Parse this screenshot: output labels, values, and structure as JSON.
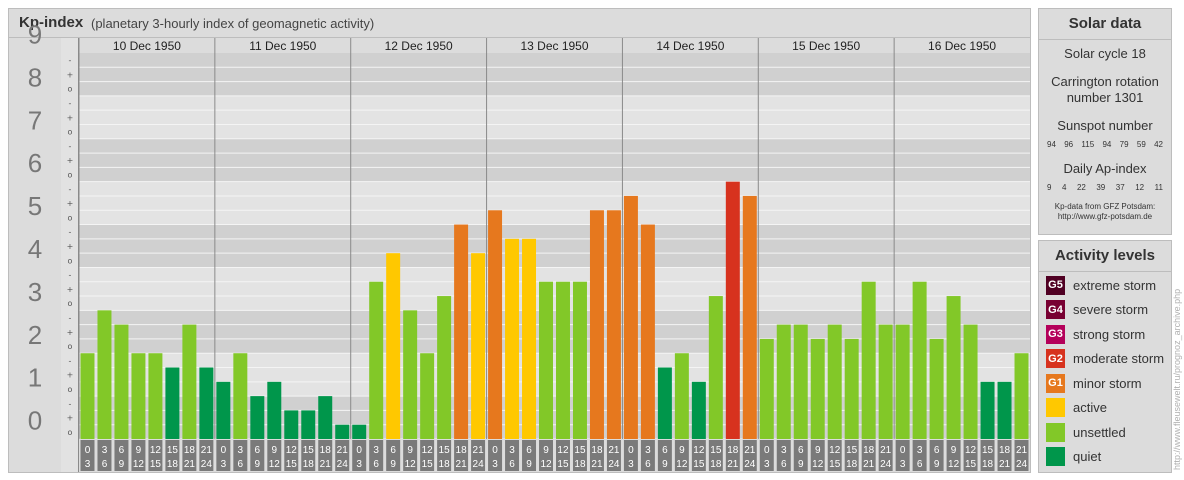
{
  "header": {
    "title": "Kp-index",
    "subtitle": "(planetary 3-hourly index of geomagnetic activity)"
  },
  "chart_data": {
    "type": "bar",
    "title": "Kp-index",
    "subtitle": "(planetary 3-hourly index of geomagnetic activity)",
    "ylim": [
      0,
      9
    ],
    "y_ticks": [
      "0",
      "1",
      "2",
      "3",
      "4",
      "5",
      "6",
      "7",
      "8",
      "9"
    ],
    "sub_ticks": [
      "o",
      "+",
      "-"
    ],
    "days": [
      "10 Dec 1950",
      "11 Dec 1950",
      "12 Dec 1950",
      "13 Dec 1950",
      "14 Dec 1950",
      "15 Dec 1950",
      "16 Dec 1950"
    ],
    "interval_start": [
      "0",
      "3",
      "6",
      "9",
      "12",
      "15",
      "18",
      "21"
    ],
    "interval_end": [
      "3",
      "6",
      "9",
      "12",
      "15",
      "18",
      "21",
      "24"
    ],
    "values": [
      [
        2.0,
        3.0,
        2.667,
        2.0,
        2.0,
        1.667,
        2.667,
        1.667
      ],
      [
        1.333,
        2.0,
        1.0,
        1.333,
        0.667,
        0.667,
        1.0,
        0.333
      ],
      [
        0.333,
        3.667,
        4.333,
        3.0,
        2.0,
        3.333,
        5.0,
        4.333
      ],
      [
        5.333,
        4.667,
        4.667,
        3.667,
        3.667,
        3.667,
        5.333,
        5.333
      ],
      [
        5.667,
        5.0,
        1.667,
        2.0,
        1.333,
        3.333,
        6.0,
        5.667
      ],
      [
        2.333,
        2.667,
        2.667,
        2.333,
        2.667,
        2.333,
        3.667,
        2.667
      ],
      [
        2.667,
        3.667,
        2.333,
        3.333,
        2.667,
        1.333,
        1.333,
        2.0
      ]
    ],
    "colors": {
      "quiet": "#00964b",
      "unsettled": "#82c828",
      "active": "#ffc800",
      "G1": "#e6781e",
      "G2": "#d7321e",
      "G3": "#b4005a",
      "G4": "#780032",
      "G5": "#500023"
    },
    "grid": true
  },
  "solar": {
    "heading": "Solar data",
    "cycle": "Solar cycle 18",
    "carrington_line1": "Carrington rotation",
    "carrington_line2": "number 1301",
    "sunspot_label": "Sunspot number",
    "sunspot_values": [
      "94",
      "96",
      "115",
      "94",
      "79",
      "59",
      "42"
    ],
    "ap_label": "Daily Ap-index",
    "ap_values": [
      "9",
      "4",
      "22",
      "39",
      "37",
      "12",
      "11"
    ],
    "source_line1": "Kp-data from GFZ Potsdam:",
    "source_line2": "http://www.gfz-potsdam.de"
  },
  "activity": {
    "heading": "Activity levels",
    "levels": [
      {
        "code": "G5",
        "label": "extreme storm",
        "color": "#500023"
      },
      {
        "code": "G4",
        "label": "severe storm",
        "color": "#780032"
      },
      {
        "code": "G3",
        "label": "strong storm",
        "color": "#b4005a"
      },
      {
        "code": "G2",
        "label": "moderate storm",
        "color": "#d7321e"
      },
      {
        "code": "G1",
        "label": "minor storm",
        "color": "#e6781e"
      },
      {
        "code": "",
        "label": "active",
        "color": "#ffc800"
      },
      {
        "code": "",
        "label": "unsettled",
        "color": "#82c828"
      },
      {
        "code": "",
        "label": "quiet",
        "color": "#00964b"
      }
    ]
  },
  "watermark": "http://www.fleusewelt.ru/prognoz_archive.php"
}
